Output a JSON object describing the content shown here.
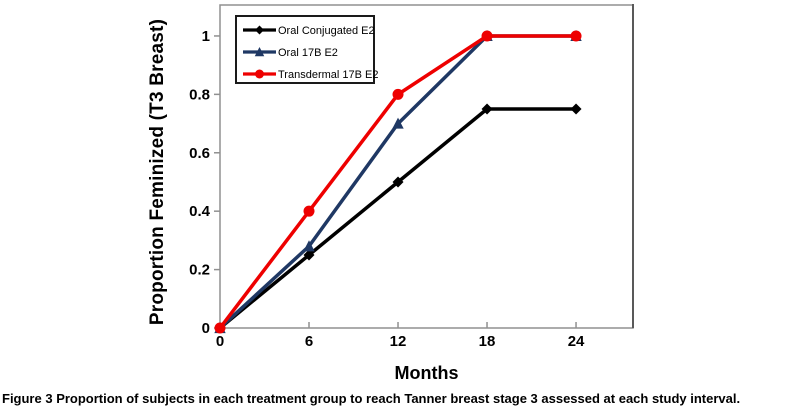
{
  "figure": {
    "caption_label": "Figure 3",
    "caption_text": " Proportion of subjects in each treatment group to reach Tanner breast stage 3 assessed at each study interval."
  },
  "chart_data": {
    "type": "line",
    "title": "",
    "xlabel": "Months",
    "ylabel": "Proportion Feminized (T3 Breast)",
    "x": [
      0,
      6,
      12,
      18,
      24
    ],
    "x_ticks": [
      "0",
      "6",
      "12",
      "18",
      "24"
    ],
    "y_tick_values": [
      0,
      0.2,
      0.4,
      0.6,
      0.8,
      1
    ],
    "y_ticks": [
      "0",
      "0.2",
      "0.4",
      "0.6",
      "0.8",
      "1"
    ],
    "xlim": [
      0,
      27.84
    ],
    "ylim": [
      0,
      1.106
    ],
    "grid": false,
    "legend_position": "top-left-inside",
    "series": [
      {
        "name": "Oral Conjugated E2",
        "color": "#000000",
        "marker": "diamond",
        "values": [
          0,
          0.25,
          0.5,
          0.75,
          0.75
        ]
      },
      {
        "name": "Oral 17B E2",
        "color": "#1f3864",
        "marker": "triangle",
        "values": [
          0,
          0.28,
          0.7,
          1,
          1
        ]
      },
      {
        "name": "Transdermal 17B E2",
        "color": "#ee0000",
        "marker": "circle",
        "values": [
          0,
          0.4,
          0.8,
          1,
          1
        ]
      }
    ],
    "colors": {
      "axis": "#909090",
      "frame_right": "#595959",
      "legend_border": "#1a1a1a",
      "plot_background": "#ffffff"
    }
  }
}
